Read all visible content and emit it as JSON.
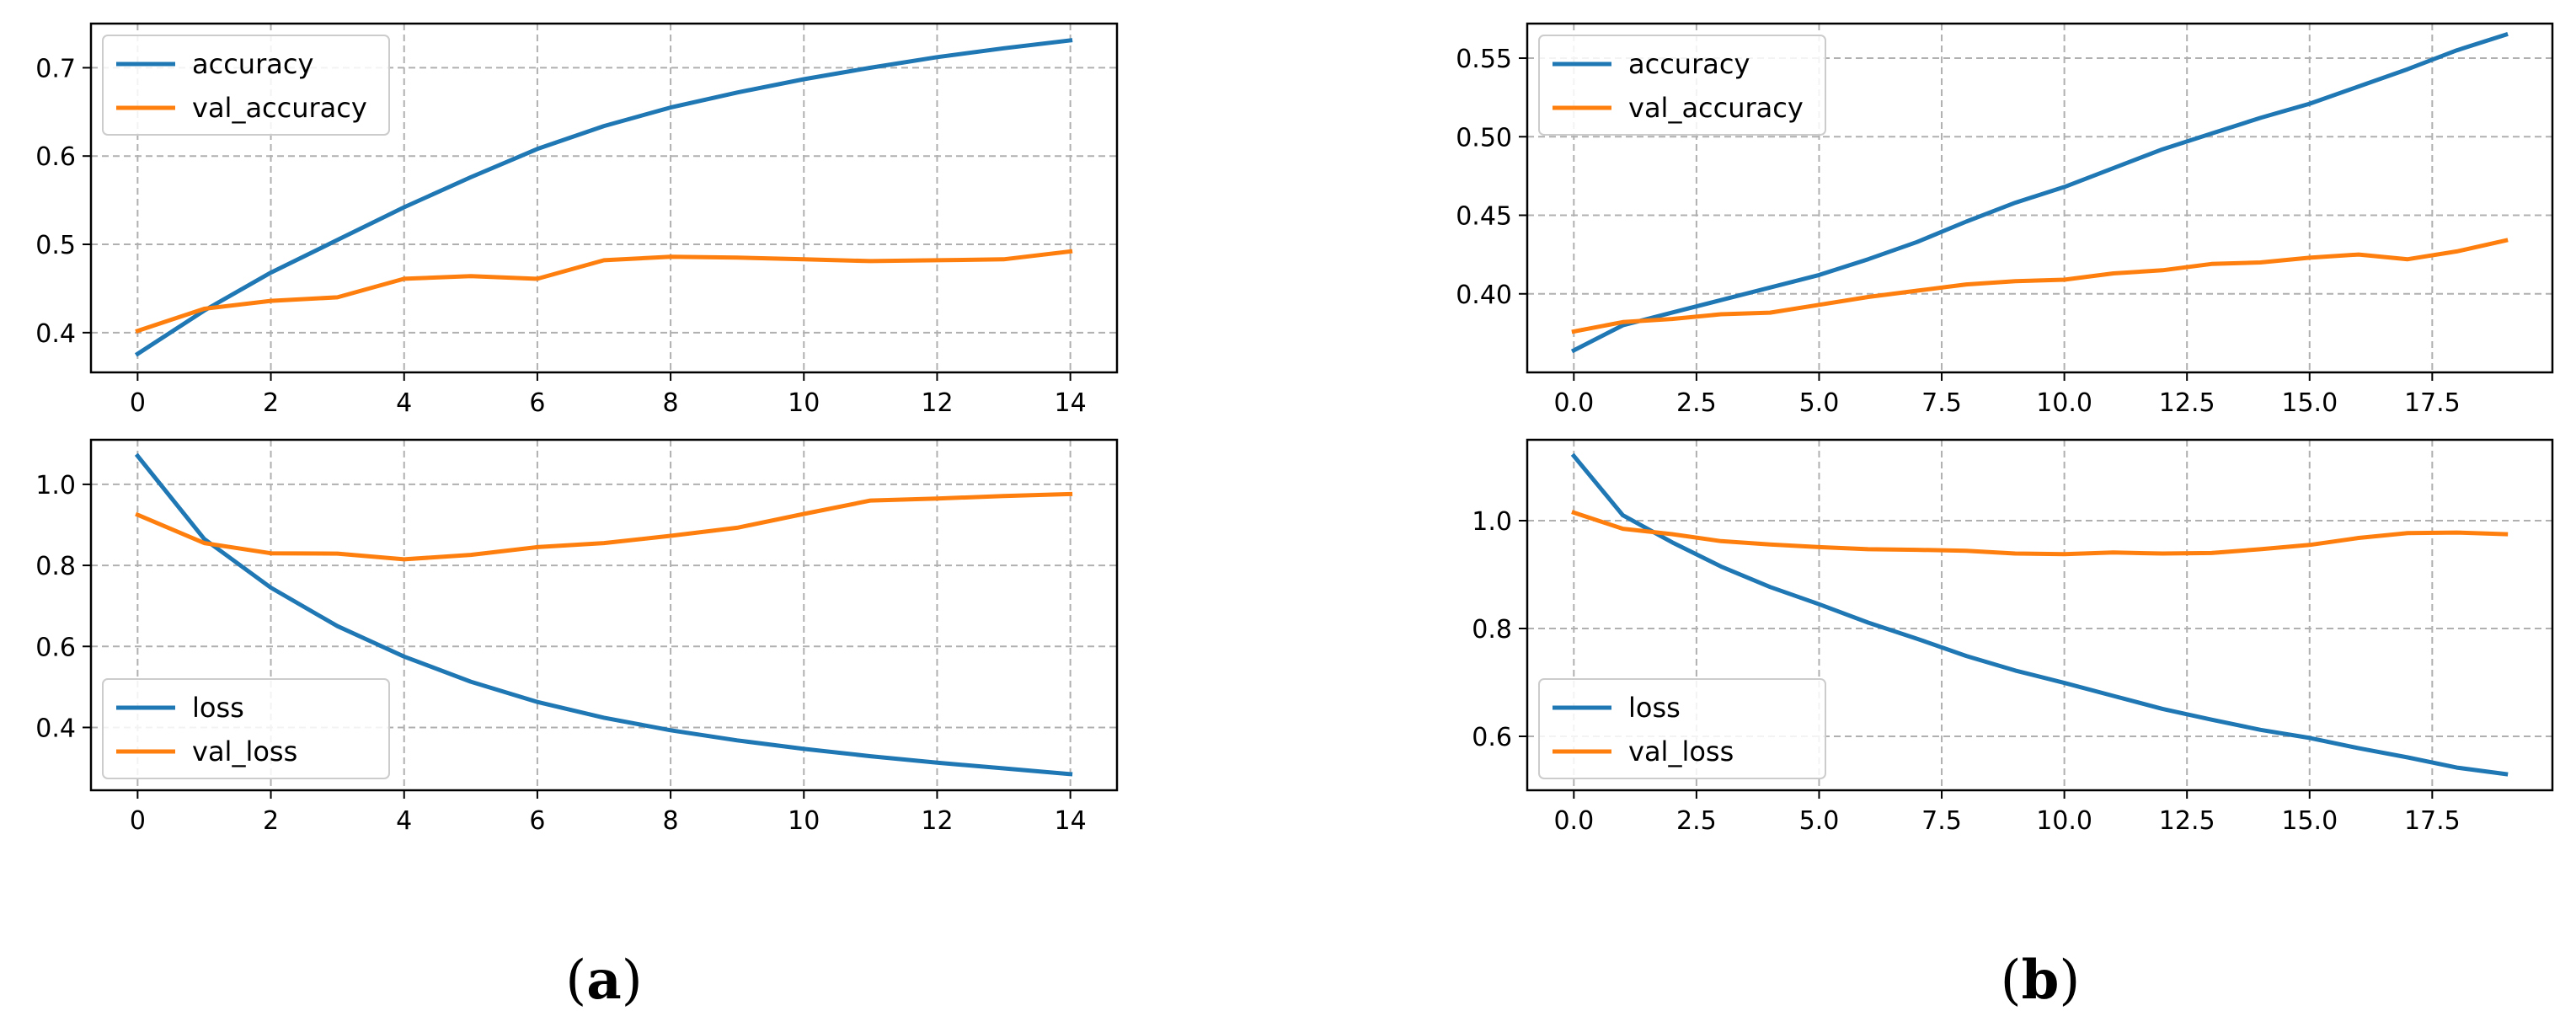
{
  "figure": {
    "caption_a": {
      "open": "(",
      "letter": "a",
      "close": ")"
    },
    "caption_b": {
      "open": "(",
      "letter": "b",
      "close": ")"
    }
  },
  "colors": {
    "blue": "#1f77b4",
    "orange": "#ff7f0e",
    "grid": "#b0b0b0"
  },
  "chart_data": [
    {
      "id": "a-top",
      "panel": "a",
      "type": "line",
      "xlim": [
        -0.7,
        14.7
      ],
      "ylim": [
        0.355,
        0.75
      ],
      "xticks": [
        0,
        2,
        4,
        6,
        8,
        10,
        12,
        14
      ],
      "xtick_labels": [
        "0",
        "2",
        "4",
        "6",
        "8",
        "10",
        "12",
        "14"
      ],
      "yticks": [
        0.4,
        0.5,
        0.6,
        0.7
      ],
      "ytick_labels": [
        "0.4",
        "0.5",
        "0.6",
        "0.7"
      ],
      "grid": true,
      "legend_loc": "upper-left",
      "x": [
        0,
        1,
        2,
        3,
        4,
        5,
        6,
        7,
        8,
        9,
        10,
        11,
        12,
        13,
        14
      ],
      "series": [
        {
          "name": "accuracy",
          "color": "#1f77b4",
          "values": [
            0.376,
            0.425,
            0.468,
            0.505,
            0.542,
            0.576,
            0.608,
            0.634,
            0.655,
            0.672,
            0.687,
            0.7,
            0.712,
            0.722,
            0.731
          ]
        },
        {
          "name": "val_accuracy",
          "color": "#ff7f0e",
          "values": [
            0.402,
            0.427,
            0.436,
            0.44,
            0.461,
            0.464,
            0.461,
            0.482,
            0.486,
            0.485,
            0.483,
            0.481,
            0.482,
            0.483,
            0.492
          ]
        }
      ]
    },
    {
      "id": "a-bottom",
      "panel": "a",
      "type": "line",
      "xlim": [
        -0.7,
        14.7
      ],
      "ylim": [
        0.245,
        1.11
      ],
      "xticks": [
        0,
        2,
        4,
        6,
        8,
        10,
        12,
        14
      ],
      "xtick_labels": [
        "0",
        "2",
        "4",
        "6",
        "8",
        "10",
        "12",
        "14"
      ],
      "yticks": [
        0.4,
        0.6,
        0.8,
        1.0
      ],
      "ytick_labels": [
        "0.4",
        "0.6",
        "0.8",
        "1.0"
      ],
      "grid": true,
      "legend_loc": "lower-left",
      "x": [
        0,
        1,
        2,
        3,
        4,
        5,
        6,
        7,
        8,
        9,
        10,
        11,
        12,
        13,
        14
      ],
      "series": [
        {
          "name": "loss",
          "color": "#1f77b4",
          "values": [
            1.07,
            0.865,
            0.745,
            0.65,
            0.575,
            0.513,
            0.463,
            0.424,
            0.393,
            0.368,
            0.347,
            0.329,
            0.313,
            0.299,
            0.285
          ]
        },
        {
          "name": "val_loss",
          "color": "#ff7f0e",
          "values": [
            0.925,
            0.855,
            0.83,
            0.829,
            0.815,
            0.826,
            0.845,
            0.855,
            0.873,
            0.893,
            0.927,
            0.96,
            0.965,
            0.971,
            0.976
          ]
        }
      ]
    },
    {
      "id": "b-top",
      "panel": "b",
      "type": "line",
      "xlim": [
        -0.95,
        19.95
      ],
      "ylim": [
        0.35,
        0.572
      ],
      "xticks": [
        0,
        2.5,
        5,
        7.5,
        10,
        12.5,
        15,
        17.5
      ],
      "xtick_labels": [
        "0.0",
        "2.5",
        "5.0",
        "7.5",
        "10.0",
        "12.5",
        "15.0",
        "17.5"
      ],
      "yticks": [
        0.4,
        0.45,
        0.5,
        0.55
      ],
      "ytick_labels": [
        "0.40",
        "0.45",
        "0.50",
        "0.55"
      ],
      "grid": true,
      "legend_loc": "upper-left",
      "x": [
        0,
        1,
        2,
        3,
        4,
        5,
        6,
        7,
        8,
        9,
        10,
        11,
        12,
        13,
        14,
        15,
        16,
        17,
        18,
        19
      ],
      "series": [
        {
          "name": "accuracy",
          "color": "#1f77b4",
          "values": [
            0.364,
            0.38,
            0.388,
            0.396,
            0.404,
            0.412,
            0.422,
            0.433,
            0.446,
            0.458,
            0.468,
            0.48,
            0.492,
            0.502,
            0.512,
            0.521,
            0.532,
            0.543,
            0.555,
            0.565
          ]
        },
        {
          "name": "val_accuracy",
          "color": "#ff7f0e",
          "values": [
            0.376,
            0.382,
            0.384,
            0.387,
            0.388,
            0.393,
            0.398,
            0.402,
            0.406,
            0.408,
            0.409,
            0.413,
            0.415,
            0.419,
            0.42,
            0.423,
            0.425,
            0.422,
            0.427,
            0.434
          ]
        }
      ]
    },
    {
      "id": "b-bottom",
      "panel": "b",
      "type": "line",
      "xlim": [
        -0.95,
        19.95
      ],
      "ylim": [
        0.5,
        1.15
      ],
      "xticks": [
        0,
        2.5,
        5,
        7.5,
        10,
        12.5,
        15,
        17.5
      ],
      "xtick_labels": [
        "0.0",
        "2.5",
        "5.0",
        "7.5",
        "10.0",
        "12.5",
        "15.0",
        "17.5"
      ],
      "yticks": [
        0.6,
        0.8,
        1.0
      ],
      "ytick_labels": [
        "0.6",
        "0.8",
        "1.0"
      ],
      "grid": true,
      "legend_loc": "lower-left",
      "x": [
        0,
        1,
        2,
        3,
        4,
        5,
        6,
        7,
        8,
        9,
        10,
        11,
        12,
        13,
        14,
        15,
        16,
        17,
        18,
        19
      ],
      "series": [
        {
          "name": "loss",
          "color": "#1f77b4",
          "values": [
            1.12,
            1.01,
            0.96,
            0.915,
            0.877,
            0.845,
            0.811,
            0.781,
            0.749,
            0.722,
            0.699,
            0.675,
            0.651,
            0.631,
            0.612,
            0.597,
            0.578,
            0.561,
            0.542,
            0.53
          ]
        },
        {
          "name": "val_loss",
          "color": "#ff7f0e",
          "values": [
            1.015,
            0.985,
            0.975,
            0.962,
            0.956,
            0.951,
            0.947,
            0.946,
            0.944,
            0.939,
            0.938,
            0.941,
            0.939,
            0.94,
            0.947,
            0.955,
            0.968,
            0.977,
            0.978,
            0.975
          ]
        }
      ]
    }
  ]
}
